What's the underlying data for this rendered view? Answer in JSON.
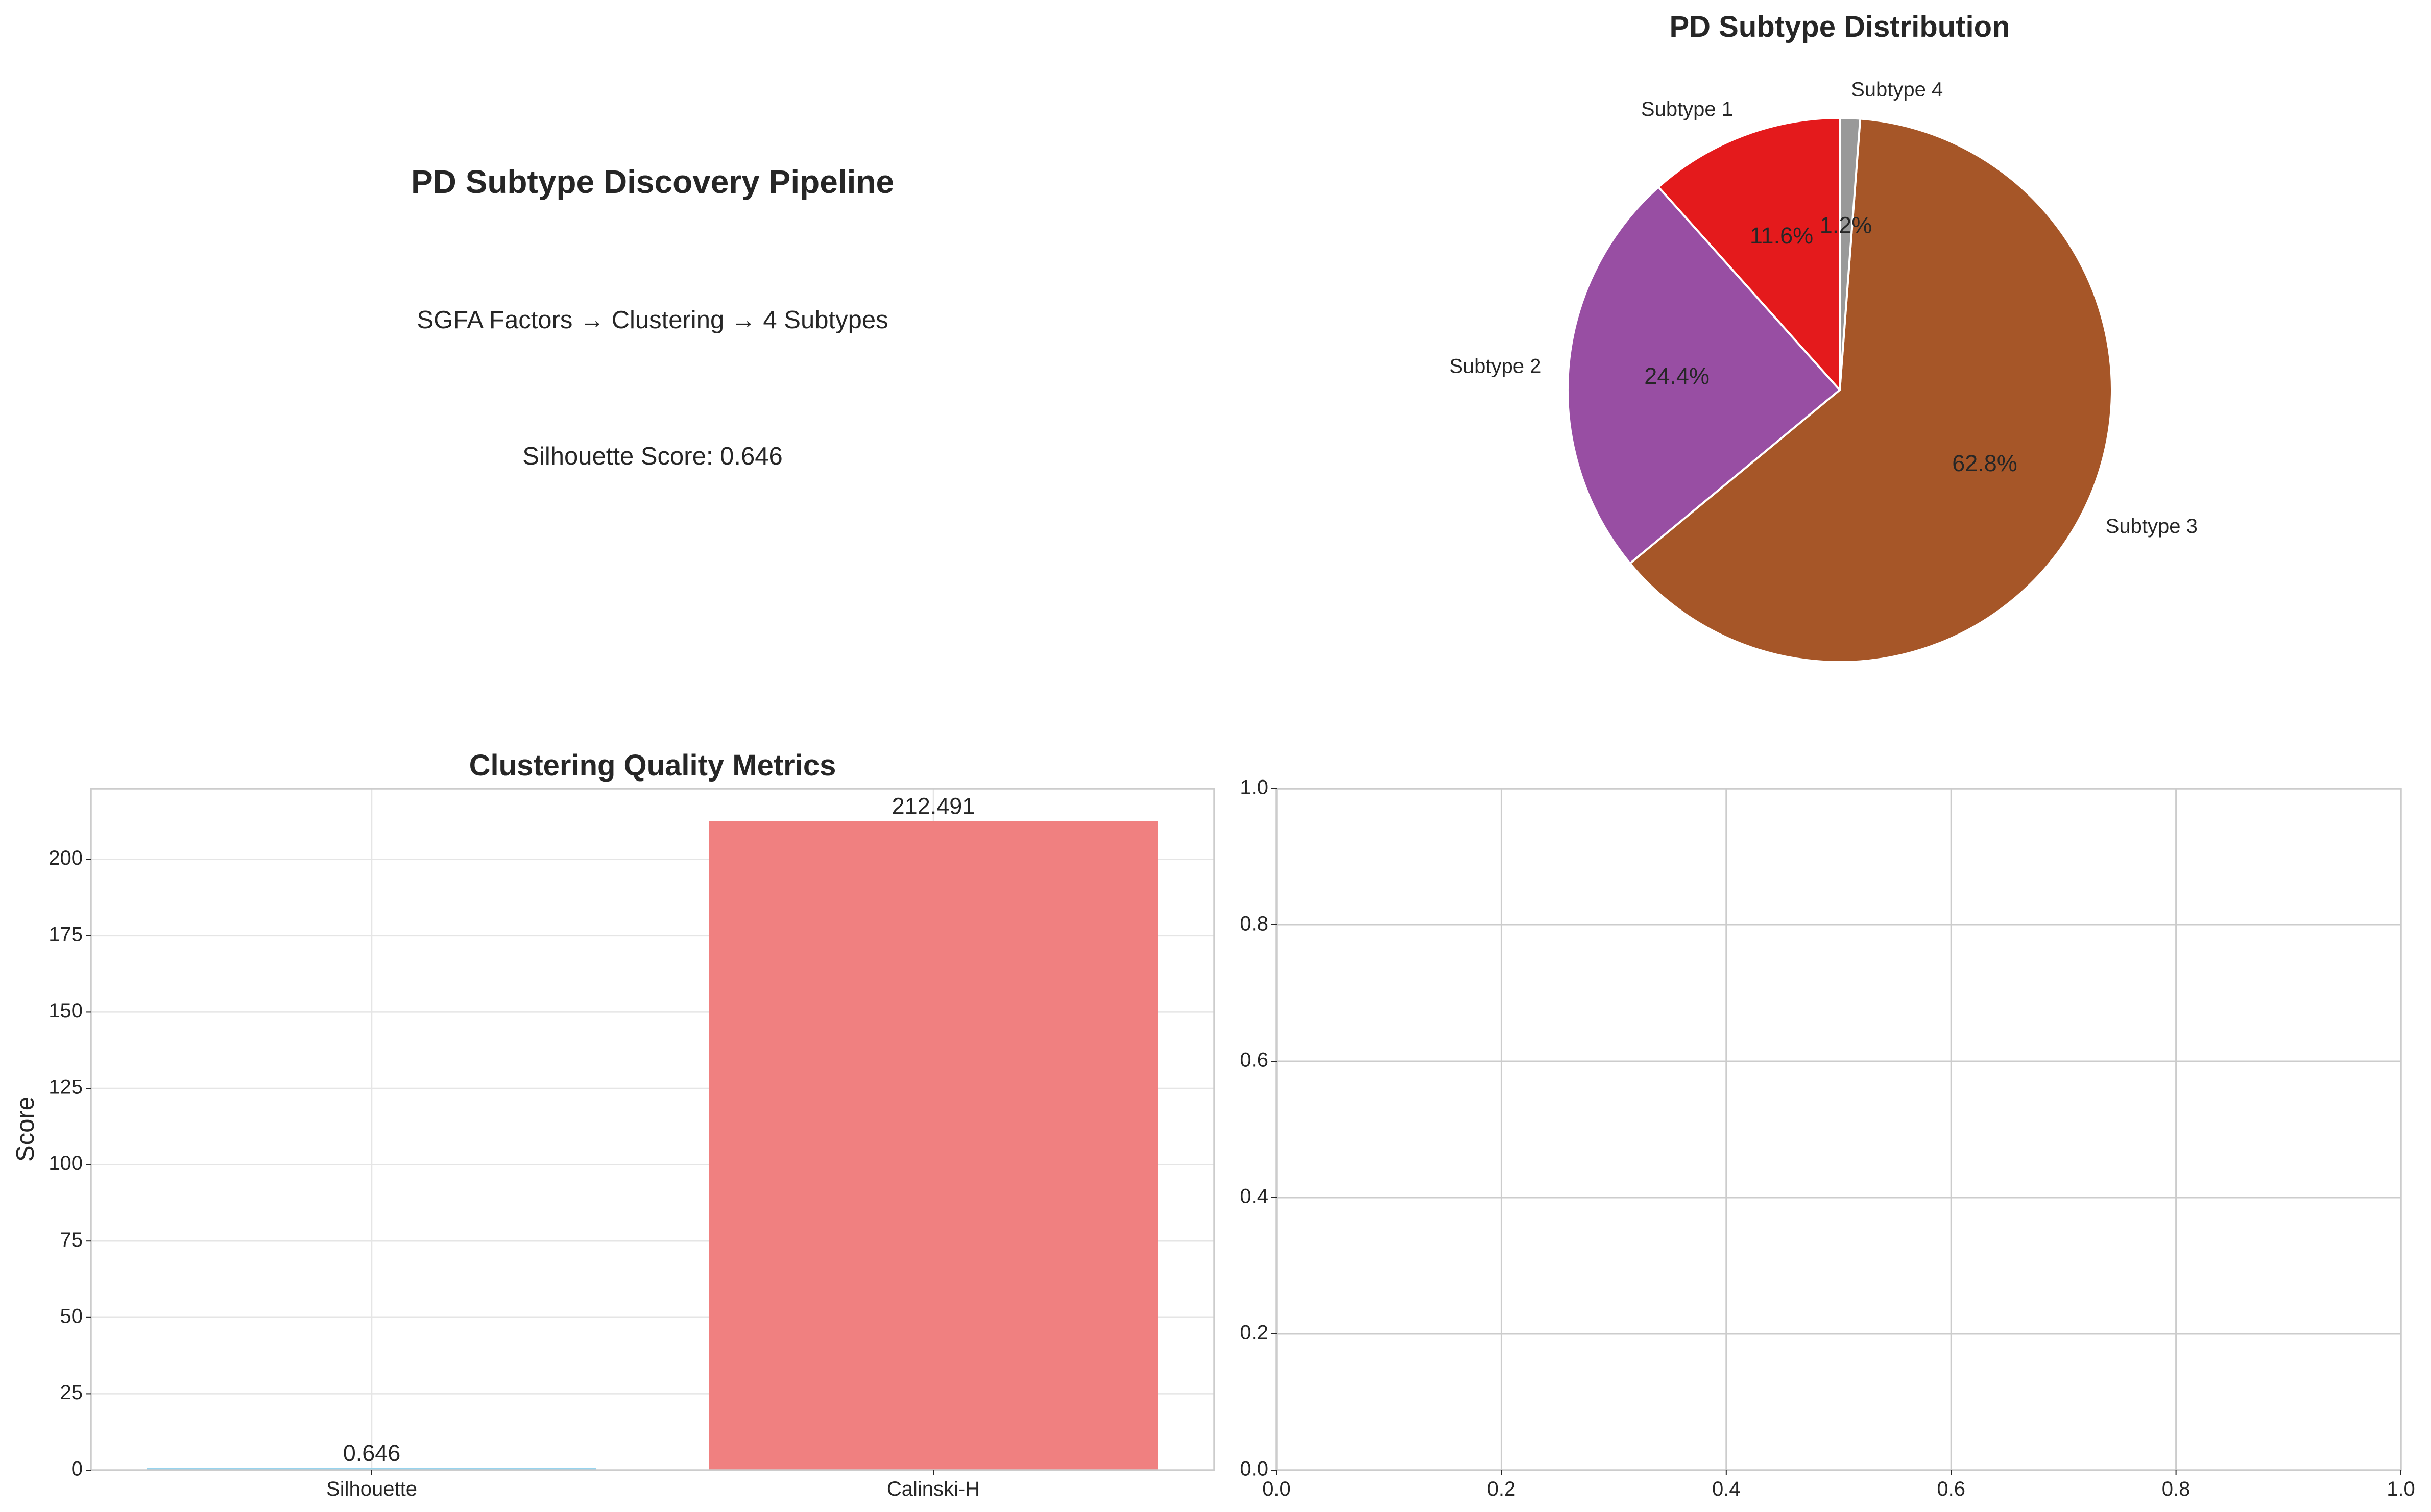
{
  "summary": {
    "title": "PD Subtype Discovery Pipeline",
    "pipeline": "SGFA Factors → Clustering → 4 Subtypes",
    "silhouette": "Silhouette Score: 0.646"
  },
  "chart_data": [
    {
      "type": "pie",
      "title": "PD Subtype Distribution",
      "labels": [
        "Subtype 1",
        "Subtype 2",
        "Subtype 3",
        "Subtype 4"
      ],
      "values": [
        11.6,
        24.4,
        62.8,
        1.2
      ],
      "value_labels": [
        "11.6%",
        "24.4%",
        "62.8%",
        "1.2%"
      ],
      "colors": [
        "#e41a1c",
        "#984ea3",
        "#a65628",
        "#999999"
      ],
      "start_angle": 90,
      "direction": "counterclockwise"
    },
    {
      "type": "bar",
      "title": "Clustering Quality Metrics",
      "categories": [
        "Silhouette",
        "Calinski-H"
      ],
      "values": [
        0.646,
        212.491
      ],
      "value_labels": [
        "0.646",
        "212.491"
      ],
      "colors": [
        "#87ceeb",
        "#f08080"
      ],
      "xlabel": "",
      "ylabel": "Score",
      "ylim": [
        0,
        223.1
      ],
      "yticks": [
        0,
        25,
        50,
        75,
        100,
        125,
        150,
        175,
        200
      ],
      "grid": true
    },
    {
      "type": "scatter",
      "title": "",
      "series": [],
      "xlim": [
        0,
        1
      ],
      "ylim": [
        0,
        1
      ],
      "xticks": [
        "0.0",
        "0.2",
        "0.4",
        "0.6",
        "0.8",
        "1.0"
      ],
      "yticks": [
        "0.0",
        "0.2",
        "0.4",
        "0.6",
        "0.8",
        "1.0"
      ],
      "grid": true
    }
  ]
}
